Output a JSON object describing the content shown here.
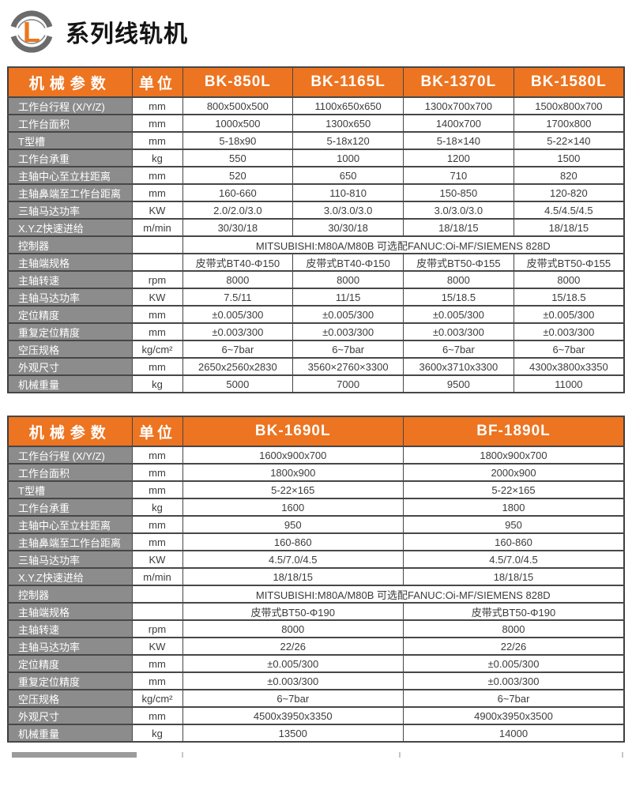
{
  "page": {
    "title": "系列线轨机",
    "logo_letter": "L"
  },
  "colors": {
    "accent_orange": "#ed7420",
    "param_gray": "#8c8c8c",
    "border": "#474747",
    "text": "#3c3c3c",
    "logo_gray": "#6b6b6b",
    "logo_orange": "#e97722"
  },
  "tables": [
    {
      "header": [
        "机械参数",
        "单位",
        "BK-850L",
        "BK-1165L",
        "BK-1370L",
        "BK-1580L"
      ],
      "rows": [
        {
          "param": "工作台行程 (X/Y/Z)",
          "unit": "mm",
          "values": [
            "800x500x500",
            "1100x650x650",
            "1300x700x700",
            "1500x800x700"
          ]
        },
        {
          "param": "工作台面积",
          "unit": "mm",
          "values": [
            "1000x500",
            "1300x650",
            "1400x700",
            "1700x800"
          ]
        },
        {
          "param": "T型槽",
          "unit": "mm",
          "values": [
            "5-18x90",
            "5-18x120",
            "5-18×140",
            "5-22×140"
          ]
        },
        {
          "param": "工作台承重",
          "unit": "kg",
          "values": [
            "550",
            "1000",
            "1200",
            "1500"
          ]
        },
        {
          "param": "主轴中心至立柱距离",
          "unit": "mm",
          "values": [
            "520",
            "650",
            "710",
            "820"
          ]
        },
        {
          "param": "主轴鼻端至工作台距离",
          "unit": "mm",
          "values": [
            "160-660",
            "110-810",
            "150-850",
            "120-820"
          ]
        },
        {
          "param": "三轴马达功率",
          "unit": "KW",
          "values": [
            "2.0/2.0/3.0",
            "3.0/3.0/3.0",
            "3.0/3.0/3.0",
            "4.5/4.5/4.5"
          ]
        },
        {
          "param": "X.Y.Z快速进给",
          "unit": "m/min",
          "values": [
            "30/30/18",
            "30/30/18",
            "18/18/15",
            "18/18/15"
          ]
        },
        {
          "param": "控制器",
          "unit": "",
          "span_value": "MITSUBISHI:M80A/M80B 可选配FANUC:Oi-MF/SIEMENS 828D"
        },
        {
          "param": "主轴端规格",
          "unit": "",
          "values": [
            "皮带式BT40-Φ150",
            "皮带式BT40-Φ150",
            "皮带式BT50-Φ155",
            "皮带式BT50-Φ155"
          ]
        },
        {
          "param": "主轴转速",
          "unit": "rpm",
          "values": [
            "8000",
            "8000",
            "8000",
            "8000"
          ]
        },
        {
          "param": "主轴马达功率",
          "unit": "KW",
          "values": [
            "7.5/11",
            "11/15",
            "15/18.5",
            "15/18.5"
          ]
        },
        {
          "param": "定位精度",
          "unit": "mm",
          "values": [
            "±0.005/300",
            "±0.005/300",
            "±0.005/300",
            "±0.005/300"
          ]
        },
        {
          "param": "重复定位精度",
          "unit": "mm",
          "values": [
            "±0.003/300",
            "±0.003/300",
            "±0.003/300",
            "±0.003/300"
          ]
        },
        {
          "param": "空压规格",
          "unit": "kg/cm²",
          "values": [
            "6~7bar",
            "6~7bar",
            "6~7bar",
            "6~7bar"
          ]
        },
        {
          "param": "外观尺寸",
          "unit": "mm",
          "values": [
            "2650x2560x2830",
            "3560×2760×3300",
            "3600x3710x3300",
            "4300x3800x3350"
          ]
        },
        {
          "param": "机械重量",
          "unit": "kg",
          "values": [
            "5000",
            "7000",
            "9500",
            "11000"
          ]
        }
      ]
    },
    {
      "header": [
        "机械参数",
        "单位",
        "BK-1690L",
        "BF-1890L"
      ],
      "rows": [
        {
          "param": "工作台行程 (X/Y/Z)",
          "unit": "mm",
          "values": [
            "1600x900x700",
            "1800x900x700"
          ]
        },
        {
          "param": "工作台面积",
          "unit": "mm",
          "values": [
            "1800x900",
            "2000x900"
          ]
        },
        {
          "param": "T型槽",
          "unit": "mm",
          "values": [
            "5-22×165",
            "5-22×165"
          ]
        },
        {
          "param": "工作台承重",
          "unit": "kg",
          "values": [
            "1600",
            "1800"
          ]
        },
        {
          "param": "主轴中心至立柱距离",
          "unit": "mm",
          "values": [
            "950",
            "950"
          ]
        },
        {
          "param": "主轴鼻端至工作台距离",
          "unit": "mm",
          "values": [
            "160-860",
            "160-860"
          ]
        },
        {
          "param": "三轴马达功率",
          "unit": "KW",
          "values": [
            "4.5/7.0/4.5",
            "4.5/7.0/4.5"
          ]
        },
        {
          "param": "X.Y.Z快速进给",
          "unit": "m/min",
          "values": [
            "18/18/15",
            "18/18/15"
          ]
        },
        {
          "param": "控制器",
          "unit": "",
          "span_value": "MITSUBISHI:M80A/M80B 可选配FANUC:Oi-MF/SIEMENS 828D"
        },
        {
          "param": "主轴端规格",
          "unit": "",
          "values": [
            "皮带式BT50-Φ190",
            "皮带式BT50-Φ190"
          ]
        },
        {
          "param": "主轴转速",
          "unit": "rpm",
          "values": [
            "8000",
            "8000"
          ]
        },
        {
          "param": "主轴马达功率",
          "unit": "KW",
          "values": [
            "22/26",
            "22/26"
          ]
        },
        {
          "param": "定位精度",
          "unit": "mm",
          "values": [
            "±0.005/300",
            "±0.005/300"
          ]
        },
        {
          "param": "重复定位精度",
          "unit": "mm",
          "values": [
            "±0.003/300",
            "±0.003/300"
          ]
        },
        {
          "param": "空压规格",
          "unit": "kg/cm²",
          "values": [
            "6~7bar",
            "6~7bar"
          ]
        },
        {
          "param": "外观尺寸",
          "unit": "mm",
          "values": [
            "4500x3950x3350",
            "4900x3950x3500"
          ]
        },
        {
          "param": "机械重量",
          "unit": "kg",
          "values": [
            "13500",
            "14000"
          ]
        }
      ]
    }
  ]
}
